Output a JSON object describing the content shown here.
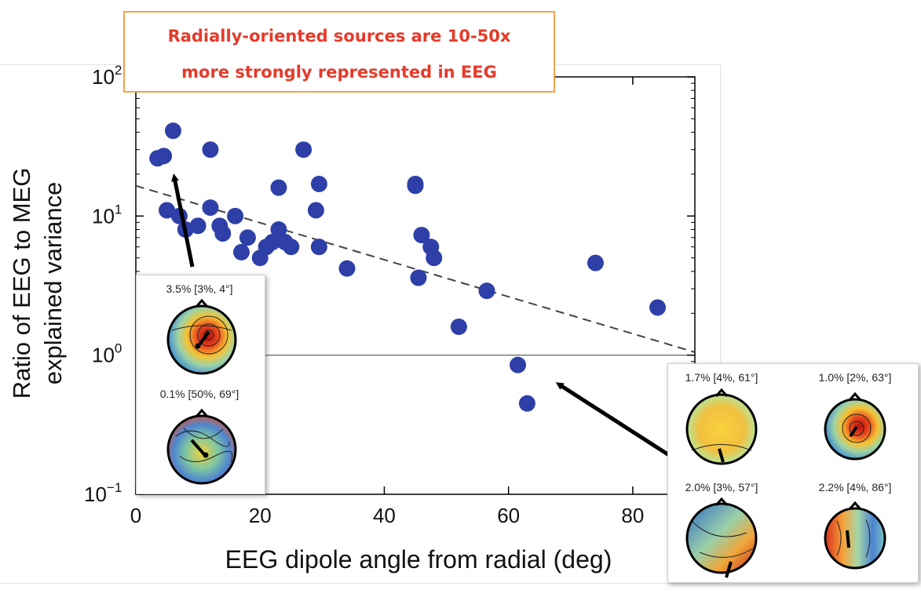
{
  "callout": {
    "line1": "Radially-oriented sources are 10-50x",
    "line2": "more strongly represented in EEG"
  },
  "chart_data": {
    "type": "scatter",
    "xlabel": "EEG dipole angle from radial (deg)",
    "ylabel_line1": "Ratio of EEG to MEG",
    "ylabel_line2": "explained variance",
    "xlim": [
      0,
      90
    ],
    "ylim": [
      0.1,
      100
    ],
    "y_scale": "log",
    "x_ticks": [
      0,
      20,
      40,
      60,
      80
    ],
    "x_tick_labels": [
      "0",
      "20",
      "40",
      "60",
      "80"
    ],
    "y_ticks": [
      0.1,
      1,
      10,
      100
    ],
    "y_tick_labels": [
      {
        "base": "10",
        "exp": "−1"
      },
      {
        "base": "10",
        "exp": "0"
      },
      {
        "base": "10",
        "exp": "1"
      },
      {
        "base": "10",
        "exp": "2"
      }
    ],
    "reference_line_y": 1,
    "trend_line": {
      "x": [
        0,
        90
      ],
      "y": [
        16.5,
        1.05
      ],
      "style": "dashed"
    },
    "point_color": "#2e3fa8",
    "series": [
      {
        "x": [
          3.5,
          4.5,
          6,
          12,
          27,
          45,
          5,
          7,
          10,
          8,
          12,
          16,
          13.5,
          14,
          17,
          18,
          20,
          21,
          22,
          23,
          24,
          25,
          29,
          29.5,
          23,
          29.5,
          45,
          46,
          47.5,
          48,
          34,
          45.5,
          56.5,
          52,
          74,
          84,
          61.5,
          63
        ],
        "y": [
          26,
          27,
          41,
          30,
          30,
          16.5,
          11,
          10,
          8.5,
          8,
          11.5,
          10,
          8.5,
          7.5,
          5.5,
          7,
          5,
          6,
          6.5,
          8,
          6.5,
          6,
          11,
          6,
          16,
          17,
          17,
          7.3,
          6,
          5,
          4.2,
          3.6,
          2.9,
          1.6,
          4.6,
          2.2,
          0.85,
          0.45
        ]
      }
    ]
  },
  "insets": {
    "left": {
      "top_label": "3.5% [3%, 4°]",
      "bottom_label": "0.1% [50%, 69°]"
    },
    "right": {
      "label_tl": "1.7% [4%, 61°]",
      "label_tr": "1.0% [2%, 63°]",
      "label_bl": "2.0% [3%, 57°]",
      "label_br": "2.2% [4%, 86°]"
    }
  },
  "colors": {
    "callout_border": "#f0a24a",
    "callout_text": "#e53a2a",
    "arrow": "#000000"
  }
}
